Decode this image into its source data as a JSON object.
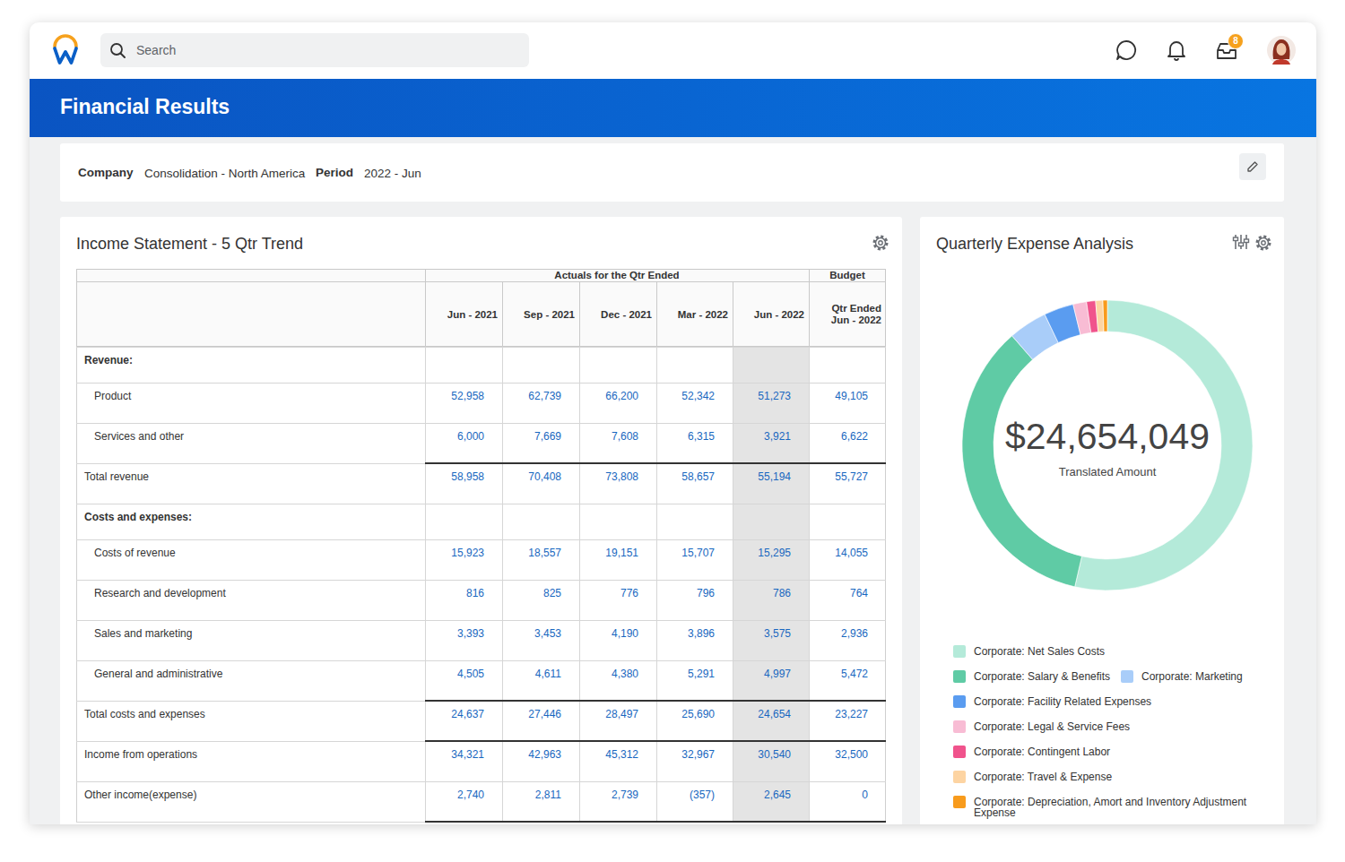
{
  "header": {
    "search_placeholder": "Search",
    "inbox_count": 8,
    "page_title": "Financial Results"
  },
  "filters": [
    {
      "label": "Company",
      "value": "Consolidation - North America"
    },
    {
      "label": "Period",
      "value": "2022 - Jun"
    }
  ],
  "income_statement": {
    "title": "Income Statement - 5 Qtr Trend",
    "group_headers": [
      "Actuals for the Qtr Ended",
      "Budget"
    ],
    "columns": [
      "Jun - 2021",
      "Sep - 2021",
      "Dec - 2021",
      "Mar - 2022",
      "Jun - 2022",
      "Qtr Ended Jun - 2022"
    ],
    "sections": [
      {
        "title": "Revenue:",
        "rows": [
          {
            "label": "Product",
            "values": [
              "52,958",
              "62,739",
              "66,200",
              "52,342",
              "51,273",
              "49,105"
            ]
          },
          {
            "label": "Services and other",
            "values": [
              "6,000",
              "7,669",
              "7,608",
              "6,315",
              "3,921",
              "6,622"
            ]
          }
        ],
        "total": {
          "label": "Total revenue",
          "values": [
            "58,958",
            "70,408",
            "73,808",
            "58,657",
            "55,194",
            "55,727"
          ]
        }
      },
      {
        "title": "Costs and expenses:",
        "rows": [
          {
            "label": "Costs of revenue",
            "values": [
              "15,923",
              "18,557",
              "19,151",
              "15,707",
              "15,295",
              "14,055"
            ]
          },
          {
            "label": "Research and development",
            "values": [
              "816",
              "825",
              "776",
              "796",
              "786",
              "764"
            ]
          },
          {
            "label": "Sales and marketing",
            "values": [
              "3,393",
              "3,453",
              "4,190",
              "3,896",
              "3,575",
              "2,936"
            ]
          },
          {
            "label": "General and administrative",
            "values": [
              "4,505",
              "4,611",
              "4,380",
              "5,291",
              "4,997",
              "5,472"
            ]
          }
        ],
        "total": {
          "label": "Total costs and expenses",
          "values": [
            "24,637",
            "27,446",
            "28,497",
            "25,690",
            "24,654",
            "23,227"
          ]
        }
      }
    ],
    "summary_rows": [
      {
        "label": "Income from operations",
        "values": [
          "34,321",
          "42,963",
          "45,312",
          "32,967",
          "30,540",
          "32,500"
        ]
      },
      {
        "label": "Other income(expense)",
        "values": [
          "2,740",
          "2,811",
          "2,739",
          "(357)",
          "2,645",
          "0"
        ]
      }
    ]
  },
  "chart_data": {
    "type": "donut",
    "title": "Quarterly Expense Analysis",
    "annotations": [
      "$24,654,049",
      "Translated Amount"
    ],
    "categories": [
      "Corporate: Net Sales Costs",
      "Corporate: Salary & Benefits",
      "Corporate: Marketing",
      "Corporate: Facility Related Expenses",
      "Corporate: Legal & Service Fees",
      "Corporate: Contingent Labor",
      "Corporate: Travel & Expense",
      "Corporate: Depreciation, Amort and Inventory Adjustment Expense"
    ],
    "values": [
      13215000,
      8629000,
      1060000,
      814000,
      370000,
      247000,
      197000,
      122049
    ],
    "colors": [
      "#b4ead9",
      "#5fcba5",
      "#a9cdf9",
      "#5a9cf0",
      "#f8bcd4",
      "#f0538c",
      "#fdd4a2",
      "#f89b1c"
    ],
    "legend": "bottom"
  }
}
